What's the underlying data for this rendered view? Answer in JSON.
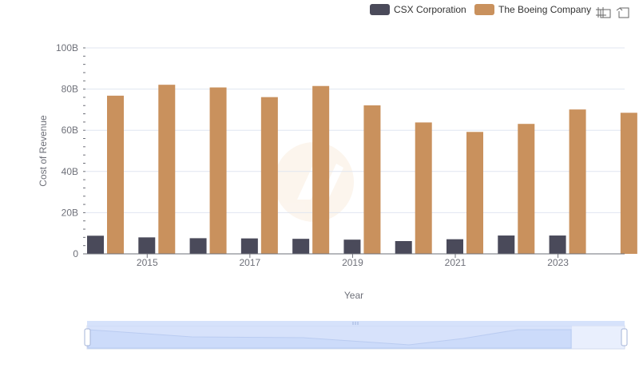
{
  "chart_data": {
    "type": "bar",
    "categories": [
      "2014",
      "2015",
      "2016",
      "2017",
      "2018",
      "2019",
      "2020",
      "2021",
      "2022",
      "2023",
      "2024"
    ],
    "x_tick_labels": [
      "2015",
      "2017",
      "2019",
      "2021",
      "2023"
    ],
    "y_tick_labels": [
      "0",
      "20B",
      "40B",
      "60B",
      "80B",
      "100B"
    ],
    "xlabel": "Year",
    "ylabel": "Cost of Revenue",
    "ylim": [
      0,
      100000000000
    ],
    "grid": true,
    "legend_position": "top-right",
    "series": [
      {
        "name": "CSX Corporation",
        "color": "#4a4a5a",
        "values": [
          8800000000,
          8000000000,
          7600000000,
          7500000000,
          7300000000,
          6900000000,
          6200000000,
          7100000000,
          8900000000,
          8900000000,
          null
        ]
      },
      {
        "name": "The Boeing Company",
        "color": "#c9915d",
        "values": [
          76800000000,
          82100000000,
          80800000000,
          76100000000,
          81500000000,
          72100000000,
          63800000000,
          59200000000,
          63100000000,
          70100000000,
          68500000000
        ]
      }
    ]
  },
  "toolbar": {
    "zoom_icon": "zoom-icon",
    "restore_icon": "restore-icon"
  },
  "datazoom": {
    "handle_color": "#a5b4d8",
    "fill_color": "#d6e2fb"
  }
}
